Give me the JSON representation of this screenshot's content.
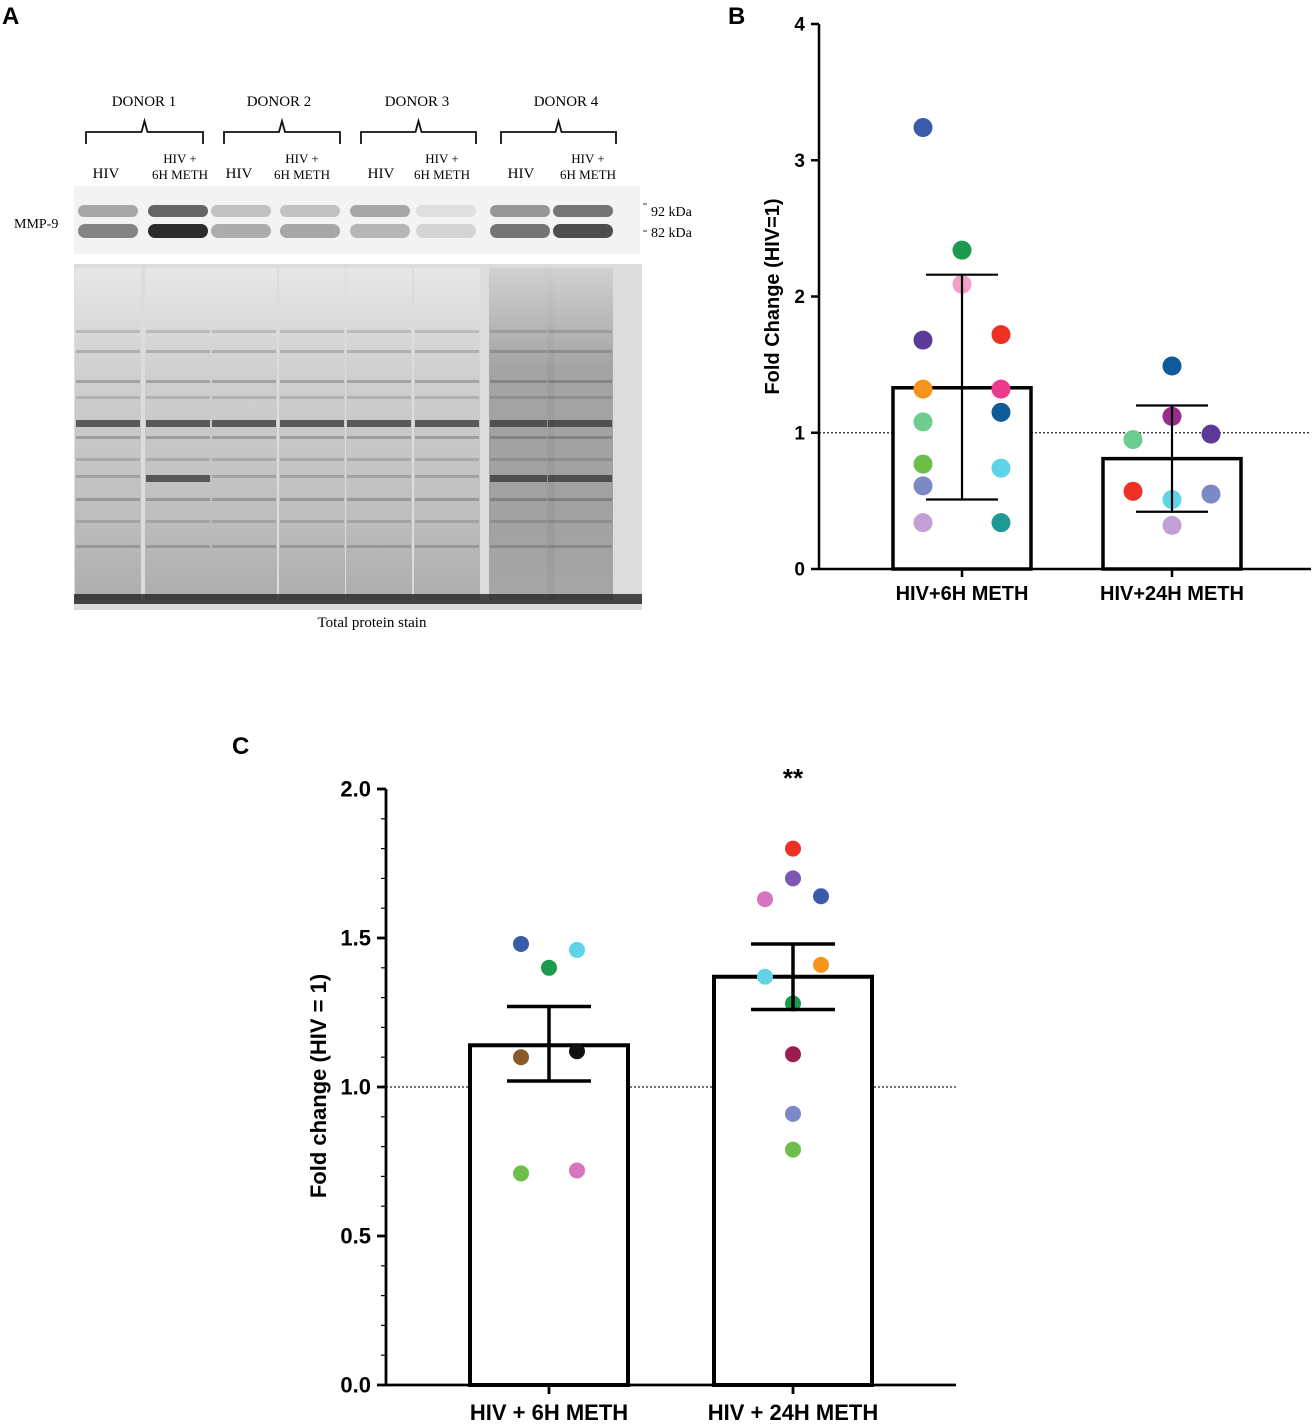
{
  "panel_labels": {
    "a": "A",
    "b": "B",
    "c": "C"
  },
  "blot": {
    "donors": [
      "DONOR 1",
      "DONOR 2",
      "DONOR 3",
      "DONOR 4"
    ],
    "lane_labels": [
      {
        "line1": "HIV",
        "line2": ""
      },
      {
        "line1": "HIV +",
        "line2": "6H METH"
      },
      {
        "line1": "HIV",
        "line2": ""
      },
      {
        "line1": "HIV +",
        "line2": "6H METH"
      },
      {
        "line1": "HIV",
        "line2": ""
      },
      {
        "line1": "HIV +",
        "line2": "6H METH"
      },
      {
        "line1": "HIV",
        "line2": ""
      },
      {
        "line1": "HIV +",
        "line2": "6H METH"
      }
    ],
    "protein_label": "MMP-9",
    "kda_labels": [
      "92 kDa",
      "82 kDa"
    ],
    "caption": "Total protein stain"
  },
  "chart_data": [
    {
      "panel": "B",
      "type": "bar",
      "categories": [
        "HIV+6H METH",
        "HIV+24H METH"
      ],
      "values": [
        1.33,
        0.81
      ],
      "error_bars": [
        [
          0.51,
          2.16
        ],
        [
          0.42,
          1.2
        ]
      ],
      "ylabel": "Fold Change (HIV=1)",
      "xlabel": "",
      "ylim": [
        0,
        4
      ],
      "yticks": [
        "0",
        "1",
        "2",
        "3",
        "4"
      ],
      "reference_line": 1,
      "points": [
        [
          {
            "offset": -1,
            "y": 3.24,
            "color": "#3a5ba9"
          },
          {
            "offset": 0,
            "y": 2.34,
            "color": "#1d9a4e"
          },
          {
            "offset": 0,
            "y": 2.09,
            "color": "#f2a0c8"
          },
          {
            "offset": -1,
            "y": 1.68,
            "color": "#5b3a99"
          },
          {
            "offset": 1,
            "y": 1.72,
            "color": "#ee3124"
          },
          {
            "offset": -1,
            "y": 1.32,
            "color": "#f7941d"
          },
          {
            "offset": 1,
            "y": 1.32,
            "color": "#ec3a8c"
          },
          {
            "offset": 1,
            "y": 1.15,
            "color": "#0e5a9a"
          },
          {
            "offset": -1,
            "y": 1.08,
            "color": "#6dcc8f"
          },
          {
            "offset": -1,
            "y": 0.77,
            "color": "#6cc04a"
          },
          {
            "offset": 1,
            "y": 0.74,
            "color": "#5fd3e8"
          },
          {
            "offset": -1,
            "y": 0.61,
            "color": "#7d89c7"
          },
          {
            "offset": -1,
            "y": 0.34,
            "color": "#c29fd4"
          },
          {
            "offset": 1,
            "y": 0.34,
            "color": "#1e9a96"
          }
        ],
        [
          {
            "offset": 0,
            "y": 1.49,
            "color": "#0e5a9a"
          },
          {
            "offset": 0,
            "y": 1.12,
            "color": "#9b2a8e"
          },
          {
            "offset": -1,
            "y": 0.95,
            "color": "#6dcc8f"
          },
          {
            "offset": 1,
            "y": 0.99,
            "color": "#5b3a99"
          },
          {
            "offset": -1,
            "y": 0.57,
            "color": "#ee3124"
          },
          {
            "offset": 0,
            "y": 0.51,
            "color": "#5fd3e8"
          },
          {
            "offset": 1,
            "y": 0.55,
            "color": "#7d89c7"
          },
          {
            "offset": 0,
            "y": 0.32,
            "color": "#c29fd4"
          }
        ]
      ]
    },
    {
      "panel": "C",
      "type": "bar",
      "categories": [
        "HIV + 6H METH",
        "HIV + 24H METH"
      ],
      "values": [
        1.14,
        1.37
      ],
      "error_bars": [
        [
          1.02,
          1.27
        ],
        [
          1.26,
          1.48
        ]
      ],
      "ylabel": "Fold change (HIV = 1)",
      "xlabel": "",
      "ylim": [
        0,
        2
      ],
      "yticks": [
        "0.0",
        "0.5",
        "1.0",
        "1.5",
        "2.0"
      ],
      "reference_line": 1,
      "significance": [
        "",
        "**"
      ],
      "points": [
        [
          {
            "offset": -1,
            "y": 1.48,
            "color": "#3a5ba9"
          },
          {
            "offset": 1,
            "y": 1.46,
            "color": "#5fd3e8"
          },
          {
            "offset": 0,
            "y": 1.4,
            "color": "#1d9a4e"
          },
          {
            "offset": -1,
            "y": 1.1,
            "color": "#8b5a2b"
          },
          {
            "offset": 1,
            "y": 1.12,
            "color": "#111111"
          },
          {
            "offset": -1,
            "y": 0.71,
            "color": "#6cc04a"
          },
          {
            "offset": 1,
            "y": 0.72,
            "color": "#d873c0"
          }
        ],
        [
          {
            "offset": 0,
            "y": 1.8,
            "color": "#ee3124"
          },
          {
            "offset": 0,
            "y": 1.7,
            "color": "#7e57b4"
          },
          {
            "offset": -1,
            "y": 1.63,
            "color": "#d873c0"
          },
          {
            "offset": 1,
            "y": 1.64,
            "color": "#3a5ba9"
          },
          {
            "offset": -1,
            "y": 1.37,
            "color": "#5fd3e8"
          },
          {
            "offset": 1,
            "y": 1.41,
            "color": "#f7941d"
          },
          {
            "offset": 0,
            "y": 1.28,
            "color": "#1d9a4e"
          },
          {
            "offset": 0,
            "y": 1.11,
            "color": "#9b1d4f"
          },
          {
            "offset": 0,
            "y": 0.91,
            "color": "#7d89c7"
          },
          {
            "offset": 0,
            "y": 0.79,
            "color": "#6cc04a"
          }
        ]
      ]
    }
  ]
}
